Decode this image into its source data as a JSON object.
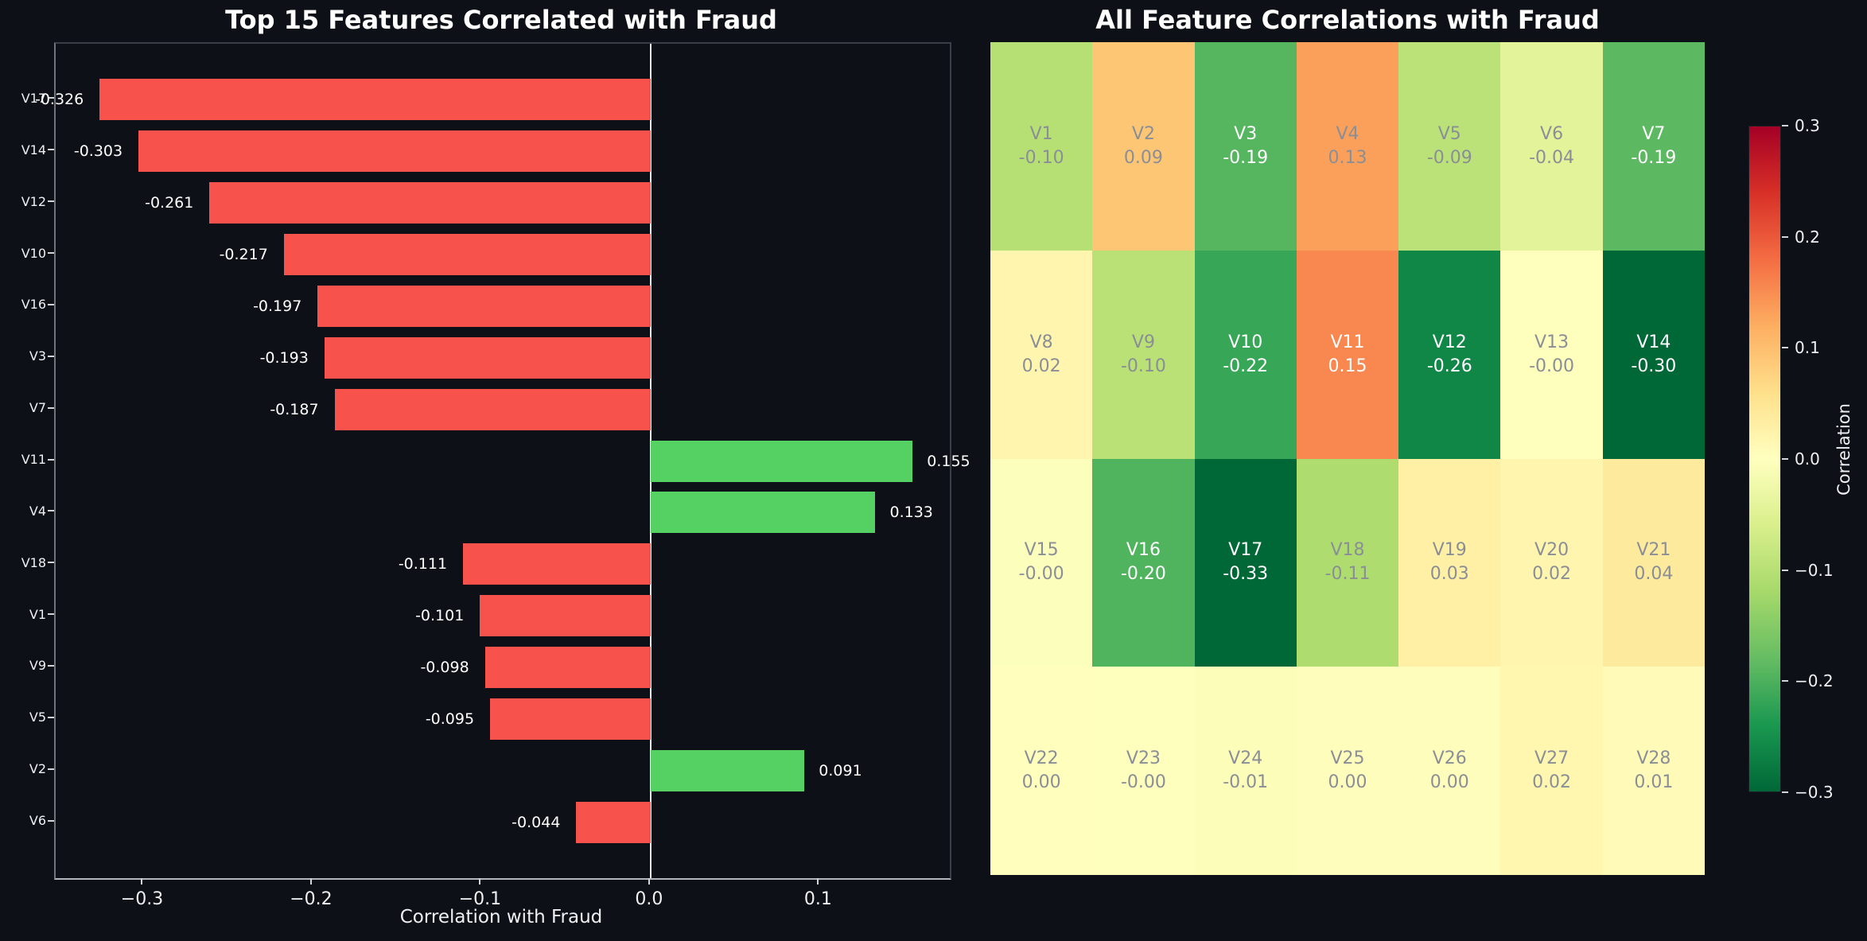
{
  "page": {
    "background": "#0d1117",
    "text_color": "#ffffff"
  },
  "chart_data": [
    {
      "type": "bar",
      "orientation": "horizontal",
      "title": "Top 15 Features Correlated with Fraud",
      "xlabel": "Correlation with Fraud",
      "ylabel": "",
      "categories": [
        "V17",
        "V14",
        "V12",
        "V10",
        "V16",
        "V3",
        "V7",
        "V11",
        "V4",
        "V18",
        "V1",
        "V9",
        "V5",
        "V2",
        "V6"
      ],
      "values": [
        -0.326,
        -0.303,
        -0.261,
        -0.217,
        -0.197,
        -0.193,
        -0.187,
        0.155,
        0.133,
        -0.111,
        -0.101,
        -0.098,
        -0.095,
        0.091,
        -0.044
      ],
      "value_labels": [
        "-0.326",
        "-0.303",
        "-0.261",
        "-0.217",
        "-0.197",
        "-0.193",
        "-0.187",
        "0.155",
        "0.133",
        "-0.111",
        "-0.101",
        "-0.098",
        "-0.095",
        "0.091",
        "-0.044"
      ],
      "xlim": [
        -0.352,
        0.177
      ],
      "x_ticks": [
        -0.3,
        -0.2,
        -0.1,
        0.0,
        0.1
      ],
      "x_tick_labels": [
        "−0.3",
        "−0.2",
        "−0.1",
        "0.0",
        "0.1"
      ],
      "grid": false,
      "negative_color": "#f7524c",
      "positive_color": "#55d063",
      "zero_line_color": "#e9ebee"
    },
    {
      "type": "heatmap",
      "title": "All Feature Correlations with Fraud",
      "shape": [
        4,
        7
      ],
      "rows": [
        [
          {
            "name": "V1",
            "value": -0.101,
            "label": "-0.10"
          },
          {
            "name": "V2",
            "value": 0.091,
            "label": "0.09"
          },
          {
            "name": "V3",
            "value": -0.193,
            "label": "-0.19"
          },
          {
            "name": "V4",
            "value": 0.133,
            "label": "0.13"
          },
          {
            "name": "V5",
            "value": -0.095,
            "label": "-0.09"
          },
          {
            "name": "V6",
            "value": -0.044,
            "label": "-0.04"
          },
          {
            "name": "V7",
            "value": -0.187,
            "label": "-0.19"
          }
        ],
        [
          {
            "name": "V8",
            "value": 0.02,
            "label": "0.02"
          },
          {
            "name": "V9",
            "value": -0.098,
            "label": "-0.10"
          },
          {
            "name": "V10",
            "value": -0.217,
            "label": "-0.22"
          },
          {
            "name": "V11",
            "value": 0.155,
            "label": "0.15"
          },
          {
            "name": "V12",
            "value": -0.261,
            "label": "-0.26"
          },
          {
            "name": "V13",
            "value": -0.002,
            "label": "-0.00"
          },
          {
            "name": "V14",
            "value": -0.303,
            "label": "-0.30"
          }
        ],
        [
          {
            "name": "V15",
            "value": -0.004,
            "label": "-0.00"
          },
          {
            "name": "V16",
            "value": -0.197,
            "label": "-0.20"
          },
          {
            "name": "V17",
            "value": -0.326,
            "label": "-0.33"
          },
          {
            "name": "V18",
            "value": -0.111,
            "label": "-0.11"
          },
          {
            "name": "V19",
            "value": 0.03,
            "label": "0.03"
          },
          {
            "name": "V20",
            "value": 0.02,
            "label": "0.02"
          },
          {
            "name": "V21",
            "value": 0.04,
            "label": "0.04"
          }
        ],
        [
          {
            "name": "V22",
            "value": 0.002,
            "label": "0.00"
          },
          {
            "name": "V23",
            "value": -0.002,
            "label": "-0.00"
          },
          {
            "name": "V24",
            "value": -0.007,
            "label": "-0.01"
          },
          {
            "name": "V25",
            "value": 0.003,
            "label": "0.00"
          },
          {
            "name": "V26",
            "value": 0.004,
            "label": "0.00"
          },
          {
            "name": "V27",
            "value": 0.017,
            "label": "0.02"
          },
          {
            "name": "V28",
            "value": 0.009,
            "label": "0.01"
          }
        ]
      ],
      "vmin": -0.3,
      "vmax": 0.3,
      "colormap_name": "RdYlGn_r",
      "colormap_stops_low_to_high": [
        "#006837",
        "#1a9850",
        "#66bd63",
        "#a6d96a",
        "#d9ef8b",
        "#ffffbf",
        "#fee08b",
        "#fdae61",
        "#f46d43",
        "#d73027",
        "#a50026"
      ],
      "cell_text_light": "#ffffff",
      "cell_text_dark": "#8a8e96",
      "light_text_abs_threshold": 0.15,
      "colorbar": {
        "label": "Correlation",
        "tick_values": [
          0.3,
          0.2,
          0.1,
          0.0,
          -0.1,
          -0.2,
          -0.3
        ],
        "tick_labels": [
          "0.3",
          "0.2",
          "0.1",
          "0.0",
          "−0.1",
          "−0.2",
          "−0.3"
        ]
      }
    }
  ]
}
